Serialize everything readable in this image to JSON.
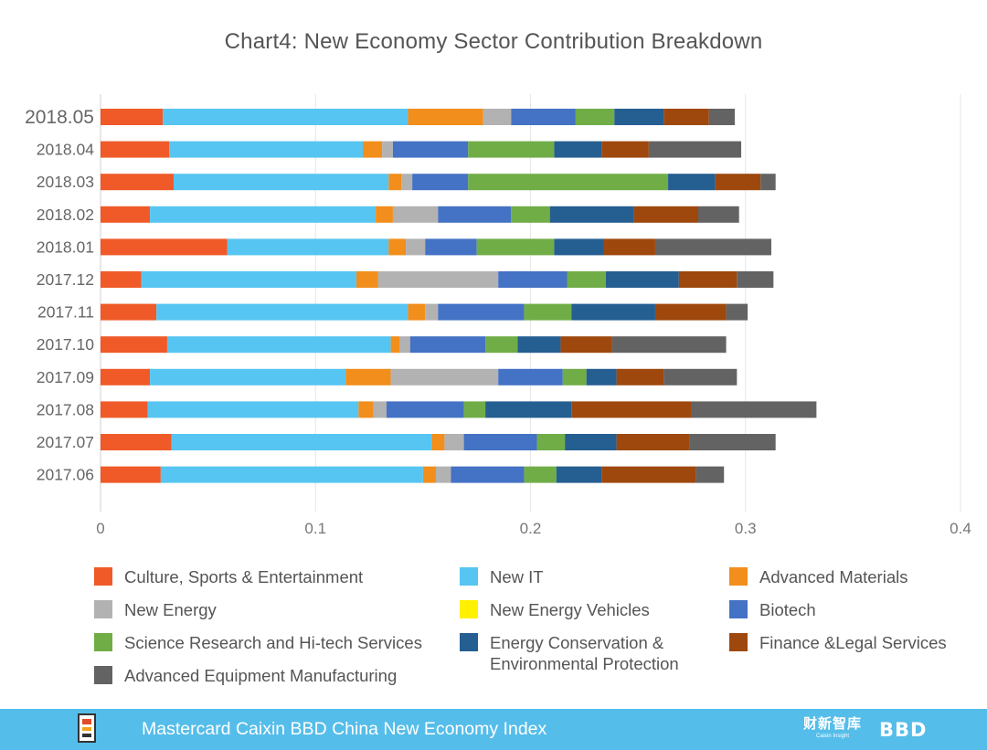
{
  "chart_data": {
    "type": "bar",
    "orientation": "horizontal",
    "stacked": true,
    "title": "Chart4: New Economy Sector Contribution Breakdown",
    "xlabel": "",
    "ylabel": "",
    "xlim": [
      0,
      0.4
    ],
    "xticks": [
      {
        "value": 0,
        "label": "0"
      },
      {
        "value": 0.1,
        "label": "0.1"
      },
      {
        "value": 0.2,
        "label": "0.2"
      },
      {
        "value": 0.3,
        "label": "0.3"
      },
      {
        "value": 0.4,
        "label": "0.4"
      }
    ],
    "grid": "vertical",
    "legend_position": "bottom",
    "highlighted_category": "2018.05",
    "categories": [
      "2018.05",
      "2018.04",
      "2018.03",
      "2018.02",
      "2018.01",
      "2017.12",
      "2017.11",
      "2017.10",
      "2017.09",
      "2017.08",
      "2017.07",
      "2017.06"
    ],
    "series": [
      {
        "name": "Culture, Sports & Entertainment",
        "color": "#ef5a28",
        "values": [
          0.029,
          0.032,
          0.034,
          0.023,
          0.059,
          0.019,
          0.026,
          0.031,
          0.023,
          0.022,
          0.033,
          0.028
        ]
      },
      {
        "name": "New IT",
        "color": "#56c5f1",
        "values": [
          0.114,
          0.09,
          0.1,
          0.105,
          0.075,
          0.1,
          0.117,
          0.104,
          0.091,
          0.098,
          0.121,
          0.122
        ]
      },
      {
        "name": "Advanced Materials",
        "color": "#f18e1c",
        "values": [
          0.035,
          0.009,
          0.006,
          0.008,
          0.008,
          0.01,
          0.008,
          0.004,
          0.021,
          0.007,
          0.006,
          0.006
        ]
      },
      {
        "name": "New Energy",
        "color": "#b2b2b2",
        "values": [
          0.013,
          0.005,
          0.005,
          0.021,
          0.009,
          0.056,
          0.006,
          0.005,
          0.05,
          0.006,
          0.009,
          0.007
        ]
      },
      {
        "name": "New Energy Vehicles",
        "color": "#fff100",
        "values": [
          0.0,
          0.0,
          0.0,
          0.0,
          0.0,
          0.0,
          0.0,
          0.0,
          0.0,
          0.0,
          0.0,
          0.0
        ]
      },
      {
        "name": "Biotech",
        "color": "#4472c4",
        "values": [
          0.03,
          0.035,
          0.026,
          0.034,
          0.024,
          0.032,
          0.04,
          0.035,
          0.03,
          0.036,
          0.034,
          0.034
        ]
      },
      {
        "name": "Science Research and Hi-tech Services",
        "color": "#70ad47",
        "values": [
          0.018,
          0.04,
          0.093,
          0.018,
          0.036,
          0.018,
          0.022,
          0.015,
          0.011,
          0.01,
          0.013,
          0.015
        ]
      },
      {
        "name": "Energy Conservation & Environmental Protection",
        "color": "#255e91",
        "values": [
          0.023,
          0.022,
          0.022,
          0.039,
          0.023,
          0.034,
          0.039,
          0.02,
          0.014,
          0.04,
          0.024,
          0.021
        ]
      },
      {
        "name": "Finance &Legal Services",
        "color": "#9e480e",
        "values": [
          0.021,
          0.022,
          0.021,
          0.03,
          0.024,
          0.027,
          0.033,
          0.024,
          0.022,
          0.056,
          0.034,
          0.044
        ]
      },
      {
        "name": "Advanced Equipment Manufacturing",
        "color": "#636363",
        "values": [
          0.012,
          0.043,
          0.007,
          0.019,
          0.054,
          0.017,
          0.01,
          0.053,
          0.034,
          0.058,
          0.04,
          0.013
        ]
      }
    ]
  },
  "footer": {
    "title": "Mastercard Caixin BBD China New Economy Index",
    "logo_left": "NEI",
    "logo_caixin": "财新智库",
    "logo_caixin_sub": "Caixin Insight",
    "logo_bbd": "BBD",
    "background_color": "#55bde9"
  }
}
